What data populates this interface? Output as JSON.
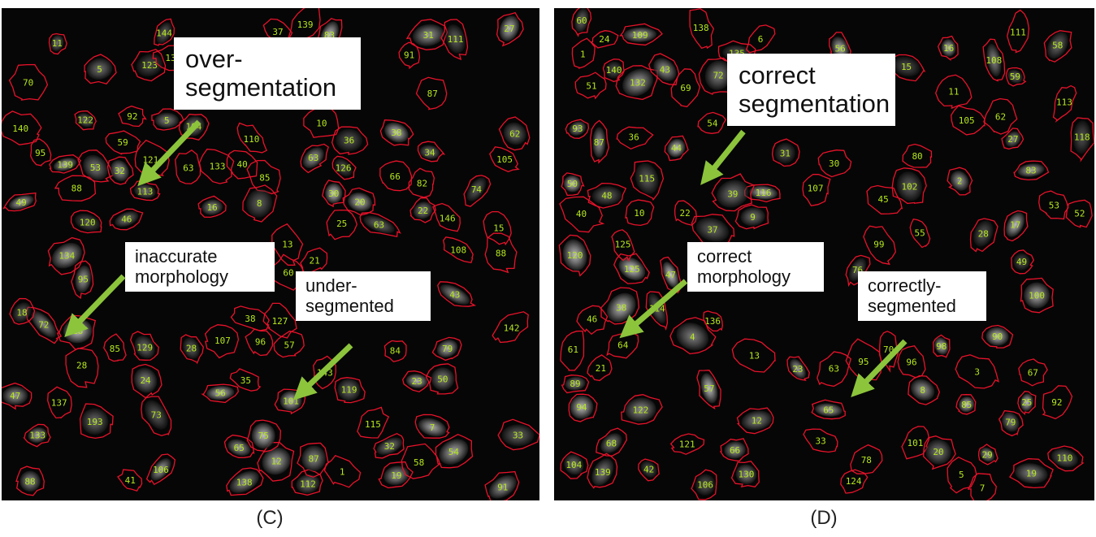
{
  "colors": {
    "outline": "#e8122a",
    "label": "#b6e81d",
    "arrow": "#8cc43c",
    "background": "#060606"
  },
  "panel_c": {
    "caption": "(C)",
    "callouts": {
      "over_segmentation": "over-\nsegmentation",
      "inaccurate_morphology": "inaccurate\nmorphology",
      "under_segmented": "under-\nsegmented"
    },
    "cell_labels": [
      "88",
      "65",
      "66",
      "138",
      "85",
      "95",
      "83",
      "30",
      "35",
      "79",
      "88",
      "63",
      "32",
      "73",
      "129",
      "143",
      "19",
      "10",
      "38",
      "142",
      "18",
      "60",
      "43",
      "108",
      "193",
      "13",
      "112",
      "72",
      "70",
      "91",
      "7",
      "37",
      "106",
      "57",
      "133",
      "20",
      "5",
      "11",
      "96",
      "85",
      "25",
      "84",
      "31",
      "113",
      "18",
      "56",
      "146",
      "24",
      "22",
      "62",
      "87",
      "27",
      "82",
      "123",
      "34",
      "63",
      "74",
      "5",
      "53",
      "119",
      "111",
      "122",
      "12",
      "33",
      "91",
      "110",
      "23",
      "54",
      "15",
      "131",
      "144",
      "38",
      "95",
      "16",
      "120",
      "28",
      "58",
      "36",
      "21",
      "47",
      "75",
      "63",
      "107",
      "40",
      "101",
      "41",
      "1",
      "115",
      "87",
      "134",
      "133",
      "49",
      "28",
      "50",
      "104",
      "137",
      "32",
      "46",
      "121",
      "92",
      "88",
      "140",
      "127",
      "139",
      "139",
      "105",
      "59",
      "8",
      "126"
    ]
  },
  "panel_d": {
    "caption": "(D)",
    "callouts": {
      "correct_segmentation": "correct\nsegmentation",
      "correct_morphology": "correct\nmorphology",
      "correctly_segmented": "correctly-\nsegmented"
    },
    "cell_labels": [
      "139",
      "136",
      "140",
      "132",
      "138",
      "125",
      "135",
      "130",
      "122",
      "120",
      "125",
      "121",
      "118",
      "115",
      "113",
      "124",
      "111",
      "109",
      "107",
      "105",
      "108",
      "110",
      "114",
      "116",
      "104",
      "100",
      "101",
      "98",
      "95",
      "102",
      "106",
      "99",
      "93",
      "96",
      "94",
      "92",
      "90",
      "89",
      "85",
      "87",
      "78",
      "83",
      "80",
      "79",
      "76",
      "72",
      "66",
      "59",
      "62",
      "64",
      "65",
      "57",
      "58",
      "47",
      "55",
      "53",
      "54",
      "56",
      "50",
      "48",
      "52",
      "46",
      "45",
      "43",
      "39",
      "31",
      "38",
      "36",
      "37",
      "29",
      "27",
      "23",
      "24",
      "17",
      "21",
      "20",
      "16",
      "19",
      "15",
      "28",
      "22",
      "25",
      "12",
      "13",
      "6",
      "8",
      "11",
      "10",
      "7",
      "9",
      "4",
      "3",
      "5",
      "2",
      "1",
      "30",
      "33",
      "40",
      "42",
      "44",
      "49",
      "51",
      "60",
      "61",
      "63",
      "67",
      "68",
      "69",
      "70"
    ]
  }
}
